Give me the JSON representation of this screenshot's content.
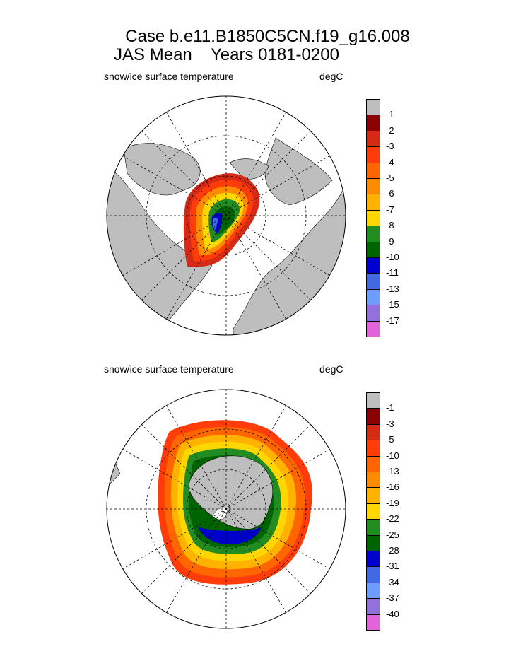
{
  "header": {
    "line1": "Case b.e11.B1850C5CN.f19_g16.008",
    "line2": "JAS Mean    Years 0181-0200"
  },
  "panels": [
    {
      "name": "north",
      "left_label": "snow/ice surface temperature",
      "right_label": "degC",
      "colorbar": {
        "labels": [
          "-1",
          "-2",
          "-3",
          "-4",
          "-5",
          "-6",
          "-7",
          "-8",
          "-9",
          "-10",
          "-11",
          "-13",
          "-15",
          "-17"
        ],
        "colors": [
          "#bebebe",
          "#8b0000",
          "#d42a16",
          "#ff3c0a",
          "#ff6600",
          "#ff8c00",
          "#ffb300",
          "#ffd700",
          "#228b22",
          "#006400",
          "#0000cd",
          "#4169e1",
          "#6f9cff",
          "#9370db",
          "#e066d8"
        ]
      }
    },
    {
      "name": "south",
      "left_label": "snow/ice surface temperature",
      "right_label": "degC",
      "colorbar": {
        "labels": [
          "-1",
          "-3",
          "-5",
          "-10",
          "-13",
          "-16",
          "-19",
          "-22",
          "-25",
          "-28",
          "-31",
          "-34",
          "-37",
          "-40"
        ],
        "colors": [
          "#bebebe",
          "#8b0000",
          "#d42a16",
          "#ff3c0a",
          "#ff6600",
          "#ff8c00",
          "#ffb300",
          "#ffd700",
          "#228b22",
          "#006400",
          "#0000cd",
          "#4169e1",
          "#6f9cff",
          "#9370db",
          "#e066d8"
        ]
      }
    }
  ]
}
